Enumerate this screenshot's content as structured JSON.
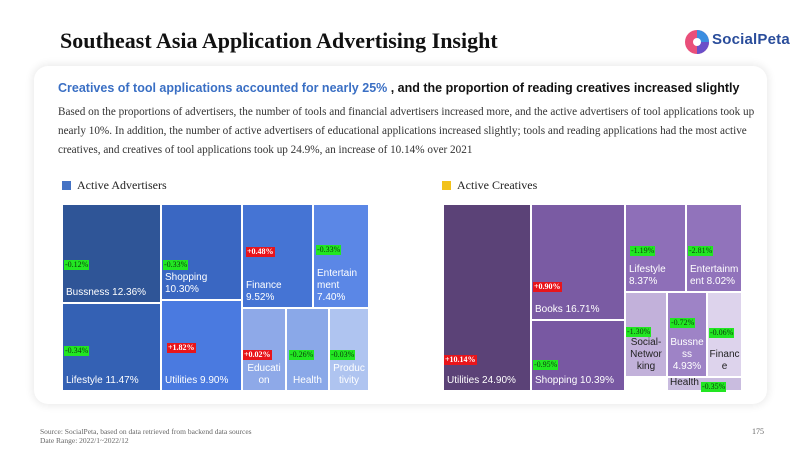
{
  "header": {
    "title": "Southeast Asia Application Advertising Insight",
    "logo_text": "SocialPeta"
  },
  "card": {
    "headline_highlight": "Creatives of tool applications accounted for nearly 25%",
    "headline_rest": " , and the proportion of reading creatives increased slightly",
    "description": "Based on the proportions of advertisers, the number of tools and financial advertisers increased more, and the active advertisers of tool applications took up nearly 10%. In addition, the number of active advertisers of educational applications increased slightly; tools and reading applications had the most active creatives, and creatives of tool applications took up 24.9%, an increase of 10.14% over 2021"
  },
  "footer": {
    "source": "Source: SocialPeta, based on data retrieved from backend data sources",
    "date_range": "Date Range: 2022/1~2022/12",
    "page_number": "175"
  },
  "chart_data": [
    {
      "type": "treemap",
      "legend": "Active Advertisers",
      "legend_color": "#4472c4",
      "items": [
        {
          "label": "Bussness 12.36%",
          "value": 12.36,
          "change": "-0.12%",
          "direction": "down",
          "color": "#2f5597"
        },
        {
          "label": "Lifestyle 11.47%",
          "value": 11.47,
          "change": "-0.34%",
          "direction": "down",
          "color": "#3461b4"
        },
        {
          "label": "Shopping 10.30%",
          "value": 10.3,
          "change": "-0.33%",
          "direction": "down",
          "color": "#3a67c2"
        },
        {
          "label": "Utilities 9.90%",
          "value": 9.9,
          "change": "+1.82%",
          "direction": "up",
          "color": "#4a7ae0"
        },
        {
          "label": "Finance 9.52%",
          "value": 9.52,
          "change": "+0.48%",
          "direction": "up",
          "color": "#4574d4"
        },
        {
          "label": "Entertainment 7.40%",
          "value": 7.4,
          "change": "-0.33%",
          "direction": "down",
          "color": "#5b87e6"
        },
        {
          "label": "Education",
          "value": null,
          "change": "+0.02%",
          "direction": "up",
          "color": "#8ea9e8"
        },
        {
          "label": "Health",
          "value": null,
          "change": "-0.26%",
          "direction": "down",
          "color": "#8aa8e8"
        },
        {
          "label": "Productivity",
          "value": null,
          "change": "-0.03%",
          "direction": "down",
          "color": "#afc4f0"
        }
      ]
    },
    {
      "type": "treemap",
      "legend": "Active Creatives",
      "legend_color": "#f2c21b",
      "items": [
        {
          "label": "Utilities 24.90%",
          "value": 24.9,
          "change": "+10.14%",
          "direction": "up",
          "color": "#5b4277"
        },
        {
          "label": "Books 16.71%",
          "value": 16.71,
          "change": "+0.90%",
          "direction": "up",
          "color": "#7a5ba3"
        },
        {
          "label": "Shopping 10.39%",
          "value": 10.39,
          "change": "-0.95%",
          "direction": "down",
          "color": "#7858a2"
        },
        {
          "label": "Lifestyle 8.37%",
          "value": 8.37,
          "change": "-1.19%",
          "direction": "down",
          "color": "#8e6fb8"
        },
        {
          "label": "Entertainment 8.02%",
          "value": 8.02,
          "change": "-2.81%",
          "direction": "down",
          "color": "#9173bb"
        },
        {
          "label": "Social-Networking",
          "value": null,
          "change": "-1.30%",
          "direction": "down",
          "color": "#c2b1da"
        },
        {
          "label": "Bussness 4.93%",
          "value": 4.93,
          "change": "-0.72%",
          "direction": "down",
          "color": "#9e83c6"
        },
        {
          "label": "Finance",
          "value": null,
          "change": "-0.06%",
          "direction": "down",
          "color": "#ddd3ec"
        },
        {
          "label": "Health",
          "value": null,
          "change": "-0.35%",
          "direction": "down",
          "color": "#c9bcdf"
        }
      ]
    }
  ]
}
